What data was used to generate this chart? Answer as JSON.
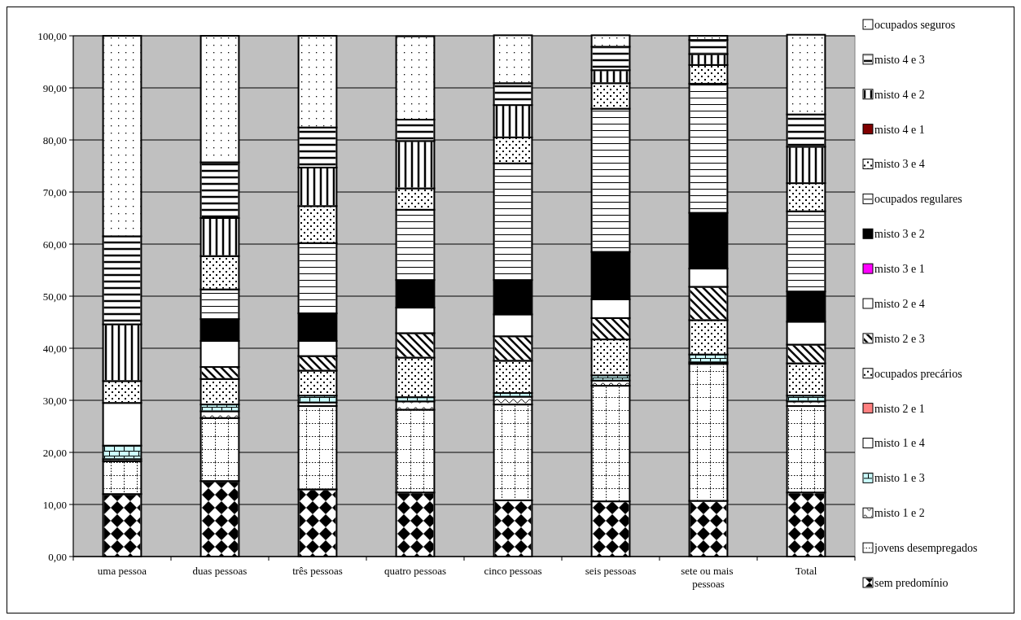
{
  "chart_data": {
    "type": "bar",
    "stacked": true,
    "categories": [
      "uma pessoa",
      "duas pessoas",
      "três pessoas",
      "quatro pessoas",
      "cinco pessoas",
      "seis pessoas",
      "sete ou mais pessoas",
      "Total"
    ],
    "ylim": [
      0,
      100
    ],
    "yticks": [
      {
        "value": 0,
        "label": "0,00"
      },
      {
        "value": 10,
        "label": "10,00"
      },
      {
        "value": 20,
        "label": "20,00"
      },
      {
        "value": 30,
        "label": "30,00"
      },
      {
        "value": 40,
        "label": "40,00"
      },
      {
        "value": 50,
        "label": "50,00"
      },
      {
        "value": 60,
        "label": "60,00"
      },
      {
        "value": 70,
        "label": "70,00"
      },
      {
        "value": 80,
        "label": "80,00"
      },
      {
        "value": 90,
        "label": "90,00"
      },
      {
        "value": 100,
        "label": "100,00"
      }
    ],
    "grid": "y",
    "legend": "right",
    "series": [
      {
        "name": "sem predomínio",
        "color": "#ffffff",
        "values": [
          12.0,
          14.5,
          12.9,
          12.3,
          10.8,
          10.6,
          10.7,
          12.3
        ]
      },
      {
        "name": "jovens desempregados",
        "color": "#ffffff",
        "values": [
          6.3,
          12.1,
          16.0,
          15.9,
          18.4,
          22.2,
          26.3,
          16.6
        ]
      },
      {
        "name": "misto 1 e 2",
        "color": "#ffffff",
        "values": [
          0.4,
          1.3,
          0.7,
          1.6,
          1.5,
          1.0,
          0.3,
          0.9
        ]
      },
      {
        "name": "misto 1 e 3",
        "color": "#ccffff",
        "values": [
          2.6,
          1.3,
          1.3,
          0.8,
          0.7,
          1.0,
          1.5,
          1.1
        ]
      },
      {
        "name": "misto 1 e 4",
        "color": "#ffffff",
        "values": [
          8.2,
          0,
          0,
          0,
          0,
          0,
          0,
          0
        ]
      },
      {
        "name": "misto 2 e 1",
        "color": "#ff8080",
        "values": [
          0,
          0,
          0,
          0,
          0,
          0,
          0,
          0
        ]
      },
      {
        "name": "ocupados precários",
        "color": "#ffffff",
        "values": [
          4.2,
          4.9,
          4.8,
          7.6,
          6.2,
          6.9,
          6.6,
          6.2
        ]
      },
      {
        "name": "misto 2 e 3",
        "color": "#ffffff",
        "values": [
          0,
          2.3,
          2.8,
          4.7,
          4.7,
          4.1,
          6.4,
          3.6
        ]
      },
      {
        "name": "misto 2 e 4",
        "color": "#ffffff",
        "values": [
          0,
          5.0,
          2.9,
          4.9,
          4.2,
          3.6,
          3.5,
          4.4
        ]
      },
      {
        "name": "misto 3 e 1",
        "color": "#ff00ff",
        "values": [
          0,
          0,
          0,
          0,
          0,
          0,
          0,
          0
        ]
      },
      {
        "name": "misto 3 e 2",
        "color": "#000000",
        "values": [
          0,
          4.2,
          5.3,
          5.3,
          6.6,
          9.1,
          10.7,
          5.8
        ]
      },
      {
        "name": "ocupados regulares",
        "color": "#ffffff",
        "values": [
          0,
          5.7,
          13.5,
          13.5,
          22.4,
          27.5,
          24.8,
          15.4
        ]
      },
      {
        "name": "misto 3 e 4",
        "color": "#ffffff",
        "values": [
          0,
          6.4,
          7.1,
          4.1,
          5.0,
          4.9,
          3.6,
          5.4
        ]
      },
      {
        "name": "misto 4 e 1",
        "color": "#800000",
        "values": [
          0,
          0,
          0,
          0,
          0,
          0,
          0,
          0
        ]
      },
      {
        "name": "misto 4 e 2",
        "color": "#ffffff",
        "values": [
          10.9,
          7.3,
          7.4,
          9.1,
          6.2,
          2.5,
          2.1,
          7.0
        ]
      },
      {
        "name": "misto 4 e 3",
        "color": "#ffffff",
        "values": [
          16.9,
          10.7,
          7.7,
          4.1,
          4.2,
          4.5,
          2.7,
          6.2
        ]
      },
      {
        "name": "ocupados seguros",
        "color": "#ffffff",
        "values": [
          38.5,
          24.3,
          17.6,
          16.0,
          9.2,
          2.2,
          0.8,
          15.3
        ]
      }
    ]
  }
}
